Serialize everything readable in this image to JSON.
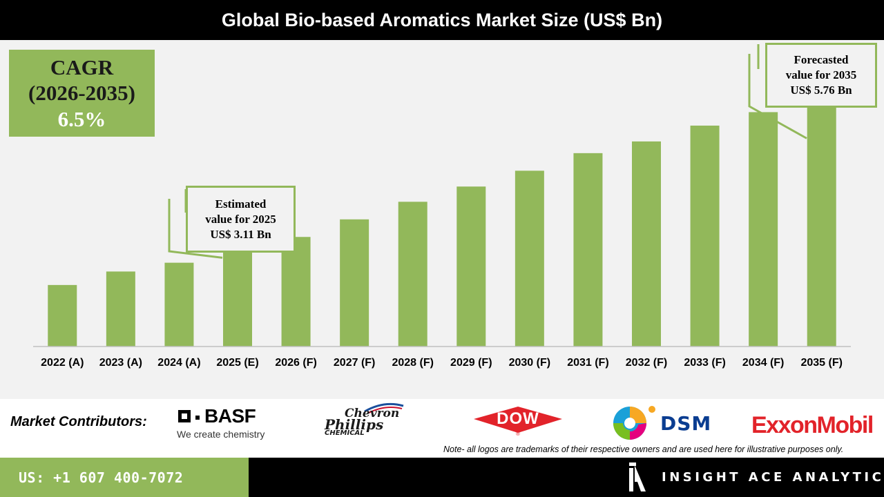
{
  "title": "Global Bio-based Aromatics Market Size (US$ Bn)",
  "cagr": {
    "label": "CAGR",
    "period": "(2026-2035)",
    "value": "6.5%"
  },
  "callouts": {
    "estimated": {
      "line1": "Estimated",
      "line2": "value for 2025",
      "line3": "US$ 3.11 Bn"
    },
    "forecasted": {
      "line1": "Forecasted",
      "line2": "value for 2035",
      "line3": "US$ 5.76 Bn"
    }
  },
  "colors": {
    "bar": "#92b85a",
    "plot_background": "#f2f2f2",
    "header": "#000000",
    "accent": "#92b85a"
  },
  "chart_data": {
    "type": "bar",
    "categories": [
      "2022 (A)",
      "2023 (A)",
      "2024 (A)",
      "2025 (E)",
      "2026 (F)",
      "2027 (F)",
      "2028 (F)",
      "2029 (F)",
      "2030 (F)",
      "2031 (F)",
      "2032 (F)",
      "2033 (F)",
      "2034 (F)",
      "2035 (F)"
    ],
    "values": [
      2.55,
      2.78,
      2.93,
      3.11,
      3.37,
      3.67,
      3.97,
      4.23,
      4.5,
      4.8,
      5.0,
      5.27,
      5.5,
      5.76
    ],
    "title": "Global Bio-based Aromatics Market Size (US$ Bn)",
    "xlabel": "",
    "ylabel": "",
    "ylim": [
      1.5,
      6.0
    ],
    "grid": false,
    "legend": "none"
  },
  "contributors": {
    "label": "Market Contributors:",
    "basf": {
      "name": "BASF",
      "tagline": "We create chemistry"
    },
    "chevron": {
      "line1": "Chevron",
      "line2": "Phillips",
      "line3": "CHEMICAL"
    },
    "dow": {
      "name": "DOW",
      "mark": "®"
    },
    "dsm": {
      "name": "DSM"
    },
    "exxon": {
      "name": "ExxonMobil"
    }
  },
  "note": "Note- all logos are trademarks of their respective owners and are used here for illustrative purposes only.",
  "footer": {
    "phone": "US: +1 607 400-7072",
    "brand": "INSIGHT ACE ANALYTIC"
  }
}
